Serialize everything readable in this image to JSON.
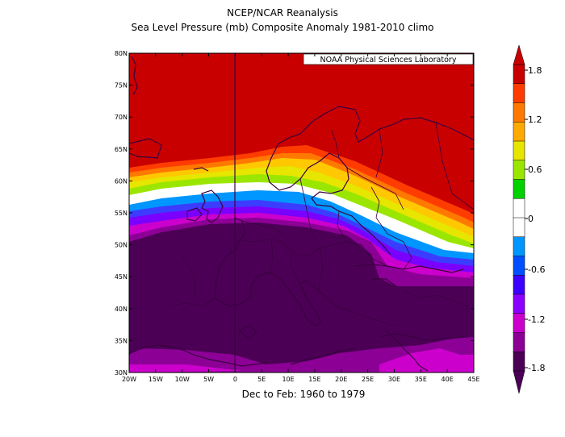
{
  "header": {
    "line1": "NCEP/NCAR Reanalysis",
    "line2": "Sea Level Pressure (mb) Composite Anomaly 1981-2010 climo"
  },
  "credit": "NOAA Physical Sciences Laboratory",
  "footer": "Dec to Feb: 1960 to 1979",
  "map": {
    "lat_labels": [
      "30N",
      "35N",
      "40N",
      "45N",
      "50N",
      "55N",
      "60N",
      "65N",
      "70N",
      "75N",
      "80N"
    ],
    "lon_labels": [
      "20W",
      "15W",
      "10W",
      "5W",
      "0",
      "5E",
      "10E",
      "15E",
      "20E",
      "25E",
      "30E",
      "35E",
      "40E",
      "45E"
    ],
    "lat_range": [
      30,
      80
    ],
    "lon_range": [
      -20,
      45
    ],
    "contour_colors": [
      "#4b0055",
      "#8c0096",
      "#cc00cc",
      "#7a00ff",
      "#3c3cff",
      "#0055ff",
      "#0096ff",
      "#ffffff",
      "#ffffff",
      "#9be600",
      "#e6e600",
      "#ffc800",
      "#ff7800",
      "#ff3c00",
      "#c80000"
    ]
  },
  "colorbar": {
    "labels": [
      "1.8",
      "1.2",
      "0.6",
      "0",
      "-0.6",
      "-1.2",
      "-1.8"
    ],
    "colors": [
      "#c80000",
      "#ff3c00",
      "#ff7800",
      "#ffaa00",
      "#e6e600",
      "#9be600",
      "#00d200",
      "#ffffff",
      "#ffffff",
      "#0096ff",
      "#0050ff",
      "#3c00ff",
      "#8c00ff",
      "#cc00cc",
      "#8c0096",
      "#4b0055"
    ]
  }
}
